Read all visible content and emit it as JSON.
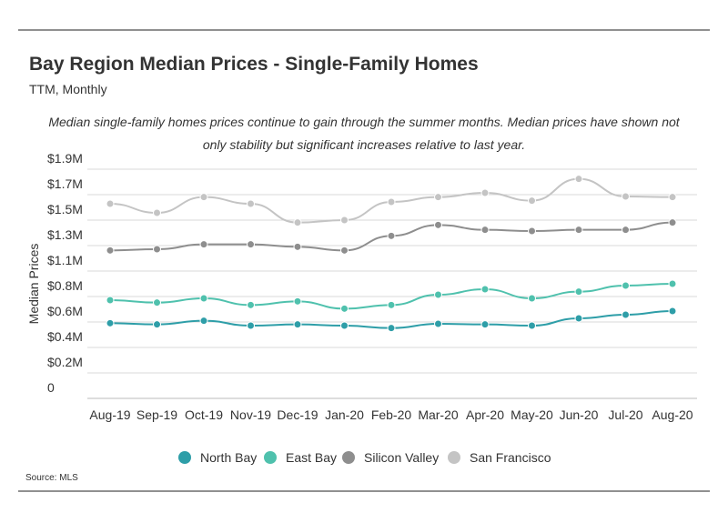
{
  "chart_data": {
    "type": "line",
    "title": "Bay Region Median Prices - Single-Family Homes",
    "subtitle": "TTM, Monthly",
    "annotation": "Median single-family homes prices continue to gain through the summer months. Median prices have shown not only stability but significant increases relative to last year.",
    "y_label": "Median Prices",
    "source": "Source:  MLS",
    "categories": [
      "Aug-19",
      "Sep-19",
      "Oct-19",
      "Nov-19",
      "Dec-19",
      "Jan-20",
      "Feb-20",
      "Mar-20",
      "Apr-20",
      "May-20",
      "Jun-20",
      "Jul-20",
      "Aug-20"
    ],
    "series": [
      {
        "name": "North Bay",
        "color": "#2e9ea8",
        "values": [
          620000,
          610000,
          640000,
          600000,
          610000,
          600000,
          580000,
          615000,
          610000,
          600000,
          660000,
          690000,
          720000
        ]
      },
      {
        "name": "East Bay",
        "color": "#4fc1ad",
        "values": [
          810000,
          790000,
          825000,
          770000,
          800000,
          740000,
          770000,
          855000,
          900000,
          825000,
          880000,
          930000,
          945000
        ]
      },
      {
        "name": "Silicon Valley",
        "color": "#8e8e8e",
        "values": [
          1220000,
          1230000,
          1270000,
          1270000,
          1250000,
          1220000,
          1340000,
          1430000,
          1390000,
          1380000,
          1390000,
          1390000,
          1450000
        ]
      },
      {
        "name": "San Francisco",
        "color": "#c4c4c4",
        "values": [
          1605000,
          1530000,
          1660000,
          1605000,
          1450000,
          1470000,
          1620000,
          1660000,
          1695000,
          1630000,
          1810000,
          1665000,
          1660000
        ]
      }
    ],
    "ylim": [
      0,
      1890000
    ],
    "yticks": [
      0,
      {
        "value": 210000,
        "label": "$0.2M"
      },
      {
        "value": 420000,
        "label": "$0.4M"
      },
      {
        "value": 630000,
        "label": "$0.6M"
      },
      {
        "value": 840000,
        "label": "$0.8M"
      },
      {
        "value": 1050000,
        "label": "$1.1M"
      },
      {
        "value": 1260000,
        "label": "$1.3M"
      },
      {
        "value": 1470000,
        "label": "$1.5M"
      },
      {
        "value": 1680000,
        "label": "$1.7M"
      },
      {
        "value": 1890000,
        "label": "$1.9M"
      }
    ],
    "grid": true,
    "legend": "bottom"
  }
}
